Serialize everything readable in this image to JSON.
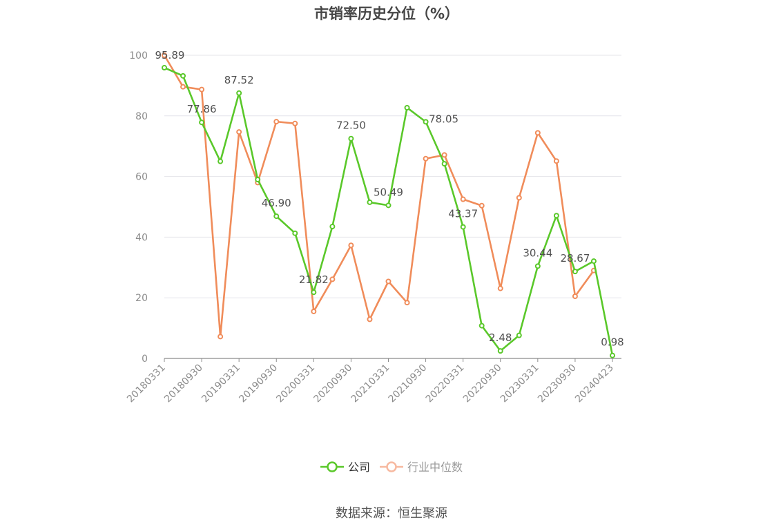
{
  "title": "市销率历史分位（%）",
  "source": "数据来源：恒生聚源",
  "chart_data": {
    "type": "line",
    "title": "市销率历史分位（%）",
    "x_tick_labels": [
      "20180331",
      "20180930",
      "20190331",
      "20190930",
      "20200331",
      "20200930",
      "20210331",
      "20210930",
      "20220331",
      "20220930",
      "20230331",
      "20230930",
      "20240423"
    ],
    "x": [
      "20180331",
      "20180630",
      "20180930",
      "20181231",
      "20190331",
      "20190630",
      "20190930",
      "20191231",
      "20200331",
      "20200630",
      "20200930",
      "20201231",
      "20210331",
      "20210630",
      "20210930",
      "20211231",
      "20220331",
      "20220630",
      "20220930",
      "20221231",
      "20230331",
      "20230630",
      "20230930",
      "20231231",
      "20240423"
    ],
    "ylim": [
      0,
      100
    ],
    "yticks": [
      0,
      20,
      40,
      60,
      80,
      100
    ],
    "grid": true,
    "legend_position": "bottom-center",
    "series": [
      {
        "name": "公司",
        "color": "#5ac82a",
        "values": [
          95.89,
          93.2,
          77.86,
          65.0,
          87.52,
          59.0,
          46.9,
          41.3,
          21.82,
          43.5,
          72.5,
          51.5,
          50.49,
          82.7,
          78.05,
          64.2,
          43.37,
          10.8,
          2.48,
          7.6,
          30.44,
          47.1,
          28.67,
          32.1,
          0.98
        ]
      },
      {
        "name": "行业中位数",
        "color": "#f08c5a",
        "values": [
          100.0,
          89.6,
          88.7,
          7.2,
          74.7,
          58.0,
          78.1,
          77.5,
          15.5,
          26.1,
          37.3,
          12.9,
          25.4,
          18.4,
          65.9,
          67.1,
          52.5,
          50.4,
          23.1,
          53.0,
          74.4,
          65.1,
          20.5,
          29.0,
          null
        ]
      }
    ],
    "data_labels": [
      {
        "series": 0,
        "index": 0,
        "text": "95.89"
      },
      {
        "series": 0,
        "index": 2,
        "text": "77.86"
      },
      {
        "series": 0,
        "index": 4,
        "text": "87.52"
      },
      {
        "series": 0,
        "index": 6,
        "text": "46.90"
      },
      {
        "series": 0,
        "index": 8,
        "text": "21.82"
      },
      {
        "series": 0,
        "index": 10,
        "text": "72.50"
      },
      {
        "series": 0,
        "index": 12,
        "text": "50.49"
      },
      {
        "series": 0,
        "index": 14,
        "text": "78.05"
      },
      {
        "series": 0,
        "index": 16,
        "text": "43.37"
      },
      {
        "series": 0,
        "index": 18,
        "text": "2.48"
      },
      {
        "series": 0,
        "index": 20,
        "text": "30.44"
      },
      {
        "series": 0,
        "index": 22,
        "text": "28.67"
      },
      {
        "series": 0,
        "index": 24,
        "text": "0.98"
      }
    ]
  }
}
